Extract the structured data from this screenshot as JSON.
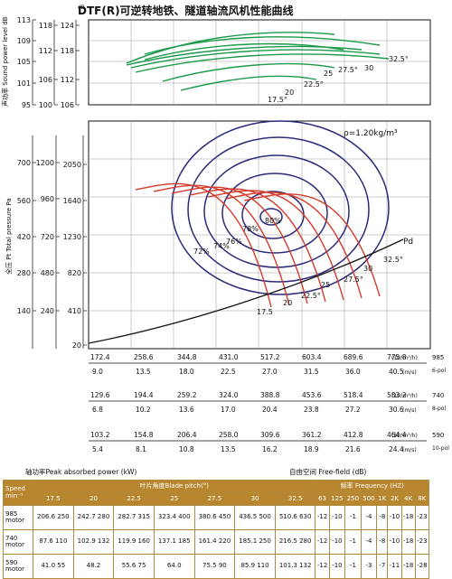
{
  "title": "DTF(R)可逆转地铁、隧道轴流风机性能曲线",
  "sound_axis": {
    "label": "声功率 Sound power level dB",
    "cols": [
      {
        "ticks": [
          "113",
          "109",
          "105",
          "101",
          "95"
        ]
      },
      {
        "ticks": [
          "118",
          "112",
          "106",
          "100"
        ]
      },
      {
        "ticks": [
          "124",
          "118",
          "112",
          "106"
        ]
      }
    ]
  },
  "pressure_axis": {
    "label": "全压 Pt Total pressure Pa",
    "cols": [
      {
        "ticks": [
          "700",
          "560",
          "420",
          "280",
          "140"
        ]
      },
      {
        "ticks": [
          "1200",
          "960",
          "720",
          "480",
          "240"
        ]
      },
      {
        "ticks": [
          "2050",
          "1640",
          "1230",
          "820",
          "410",
          "20"
        ]
      }
    ]
  },
  "density_label": "ρ=1.20kg/m³",
  "pd_label": "Pd",
  "sound_angle_labels": [
    "17.5°",
    "20",
    "22.5°",
    "25",
    "27.5°",
    "30",
    "32.5°"
  ],
  "pressure_angle_labels": [
    "17.5",
    "20",
    "22.5°",
    "25",
    "27.5°",
    "30",
    "32.5°"
  ],
  "efficiency_labels": [
    "80%",
    "78%",
    "76%",
    "74%",
    "72%"
  ],
  "chart_data": {
    "type": "line",
    "speed_scales": [
      {
        "speed": "985",
        "unit_flow": "(10⁴m³/h)",
        "unit_vel": "(m/s)",
        "pole": "6-pol",
        "flow": [
          "172.4",
          "258.6",
          "344.8",
          "431.0",
          "517.2",
          "603.4",
          "689.6",
          "775.8"
        ],
        "velocity": [
          "9.0",
          "13.5",
          "18.0",
          "22.5",
          "27.0",
          "31.5",
          "36.0",
          "40.5"
        ]
      },
      {
        "speed": "740",
        "unit_flow": "(10⁴m³/h)",
        "unit_vel": "(m/s)",
        "pole": "8-pol",
        "flow": [
          "129.6",
          "194.4",
          "259.2",
          "324.0",
          "388.8",
          "453.6",
          "518.4",
          "583.2"
        ],
        "velocity": [
          "6.8",
          "10.2",
          "13.6",
          "17.0",
          "20.4",
          "23.8",
          "27.2",
          "30.6"
        ]
      },
      {
        "speed": "590",
        "unit_flow": "(10⁴m³/h)",
        "unit_vel": "(m/s)",
        "pole": "10-pol",
        "flow": [
          "103.2",
          "154.8",
          "206.4",
          "258.0",
          "309.6",
          "361.2",
          "412.8",
          "464.4"
        ],
        "velocity": [
          "5.4",
          "8.1",
          "10.8",
          "13.5",
          "16.2",
          "18.9",
          "21.6",
          "24.4"
        ]
      }
    ]
  },
  "table": {
    "peak_label": "轴功率Peak absorbed power (kW)",
    "freefield_label": "自由空间    Free-field  (dB)",
    "speed_header": "Speed min⁻¹",
    "blade_header": "叶片角度Blade pitch(°)",
    "freq_header": "频率  Frequency  (HZ)",
    "blade_angles": [
      "17.5",
      "20",
      "22.5",
      "25",
      "27.5",
      "30",
      "32.5"
    ],
    "freqs": [
      "63",
      "125",
      "250",
      "500",
      "1K",
      "2K",
      "4K",
      "8K"
    ],
    "rows": [
      {
        "speed": "985 motor",
        "power": [
          "206.6 250",
          "242.7 280",
          "282.7 315",
          "323.4 400",
          "380.6 450",
          "436.5 500",
          "510.6 630"
        ],
        "db": [
          "-12",
          "-10",
          "-1",
          "-4",
          "-8",
          "-10",
          "-18",
          "-23"
        ]
      },
      {
        "speed": "740 motor",
        "power": [
          "87.6 110",
          "102.9 132",
          "119.9 160",
          "137.1 185",
          "161.4 220",
          "185.1 250",
          "216.5 280"
        ],
        "db": [
          "-12",
          "-10",
          "-1",
          "-4",
          "-8",
          "-10",
          "-18",
          "-23"
        ]
      },
      {
        "speed": "590 motor",
        "power": [
          "41.0 55",
          "48.2",
          "55.6 75",
          "64.0",
          "75.5 90",
          "85.9 110",
          "101.3 132"
        ],
        "db": [
          "-12",
          "-10",
          "-1",
          "-3",
          "-7",
          "-11",
          "-18",
          "-28"
        ]
      }
    ]
  }
}
